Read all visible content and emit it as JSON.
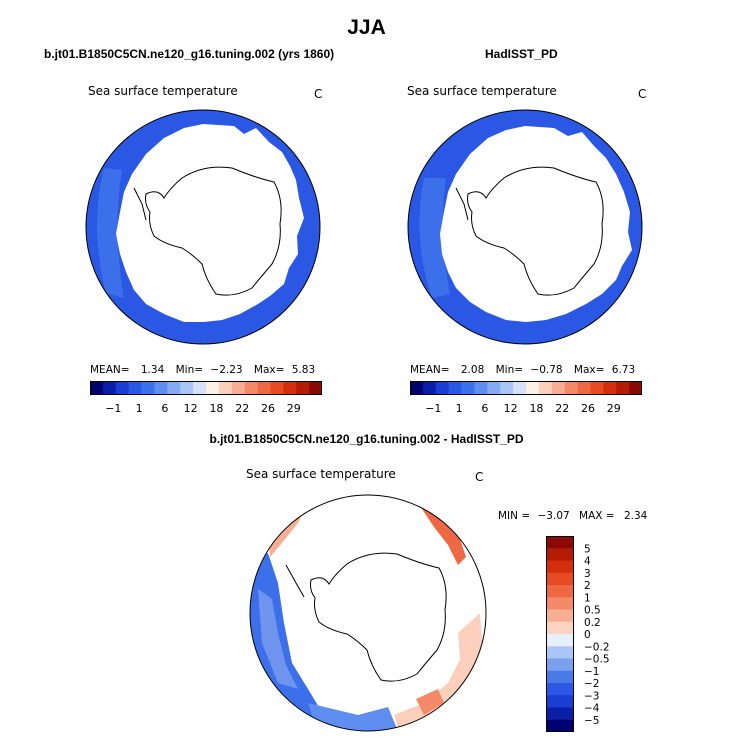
{
  "main_title": "JJA",
  "colors": {
    "ice": "#ffffff",
    "coast": "#000000",
    "cold_deep": "#2050d8",
    "cold_mid": "#3a6ee6",
    "cold_light": "#6e94ee",
    "warm_light": "#f8b8a0",
    "warm_mid": "#ee7a50",
    "warm_deep": "#e0481c"
  },
  "panels": [
    {
      "title": "b.jt01.B1850C5CN.ne120_g16.tuning.002 (yrs 1860)",
      "variable": "Sea surface temperature",
      "units": "C",
      "stats": {
        "mean_label": "MEAN=",
        "mean": "1.34",
        "min_label": "Min=",
        "min": "−2.23",
        "max_label": "Max=",
        "max": "5.83"
      }
    },
    {
      "title": "HadISST_PD",
      "variable": "Sea surface temperature",
      "units": "C",
      "stats": {
        "mean_label": "MEAN=",
        "mean": "2.08",
        "min_label": "Min=",
        "min": "−0.78",
        "max_label": "Max=",
        "max": "6.73"
      }
    },
    {
      "title": "b.jt01.B1850C5CN.ne120_g16.tuning.002 - HadISST_PD",
      "variable": "Sea surface temperature",
      "units": "C",
      "stats": {
        "min_label": "MIN =",
        "min": "−3.07",
        "max_label": "MAX =",
        "max": "2.34"
      }
    }
  ],
  "colorbar_abs": {
    "colors": [
      "#00006e",
      "#0a1ea8",
      "#1a3ed2",
      "#2a58e4",
      "#3c70ea",
      "#5e8ef0",
      "#84aaf2",
      "#aac6f6",
      "#d4e2fa",
      "#fff0e6",
      "#fcd0bc",
      "#f8ae92",
      "#f48a6a",
      "#ee6844",
      "#e64a22",
      "#d4300e",
      "#b41c06",
      "#8a0a02"
    ],
    "tick_labels": [
      "−1",
      "1",
      "6",
      "12",
      "18",
      "22",
      "26",
      "29"
    ]
  },
  "colorbar_diff": {
    "colors": [
      "#00006e",
      "#0a1ea8",
      "#1a3ed2",
      "#2a58e4",
      "#4a7ae8",
      "#7aa0ee",
      "#aac6f6",
      "#e8f0fb",
      "#fcd4c2",
      "#f8ae92",
      "#f48a6a",
      "#ee6844",
      "#e64a22",
      "#d4300e",
      "#b41c06",
      "#8a0a02"
    ],
    "tick_labels": [
      "5",
      "4",
      "3",
      "2",
      "1",
      "0.5",
      "0.2",
      "0",
      "−0.2",
      "−0.5",
      "−1",
      "−2",
      "−3",
      "−4",
      "−5"
    ]
  },
  "chart_data": [
    {
      "type": "heatmap",
      "title": "b.jt01.B1850C5CN.ne120_g16.tuning.002 (yrs 1860)",
      "variable": "Sea surface temperature",
      "units": "C",
      "projection": "south polar stereographic",
      "mean": 1.34,
      "min": -2.23,
      "max": 5.83,
      "levels": [
        -1,
        1,
        6,
        12,
        18,
        22,
        26,
        29
      ]
    },
    {
      "type": "heatmap",
      "title": "HadISST_PD",
      "variable": "Sea surface temperature",
      "units": "C",
      "projection": "south polar stereographic",
      "mean": 2.08,
      "min": -0.78,
      "max": 6.73,
      "levels": [
        -1,
        1,
        6,
        12,
        18,
        22,
        26,
        29
      ]
    },
    {
      "type": "heatmap",
      "title": "b.jt01.B1850C5CN.ne120_g16.tuning.002 - HadISST_PD",
      "variable": "Sea surface temperature",
      "units": "C",
      "projection": "south polar stereographic",
      "min": -3.07,
      "max": 2.34,
      "levels": [
        -5,
        -4,
        -3,
        -2,
        -1,
        -0.5,
        -0.2,
        0,
        0.2,
        0.5,
        1,
        2,
        3,
        4,
        5
      ]
    }
  ]
}
